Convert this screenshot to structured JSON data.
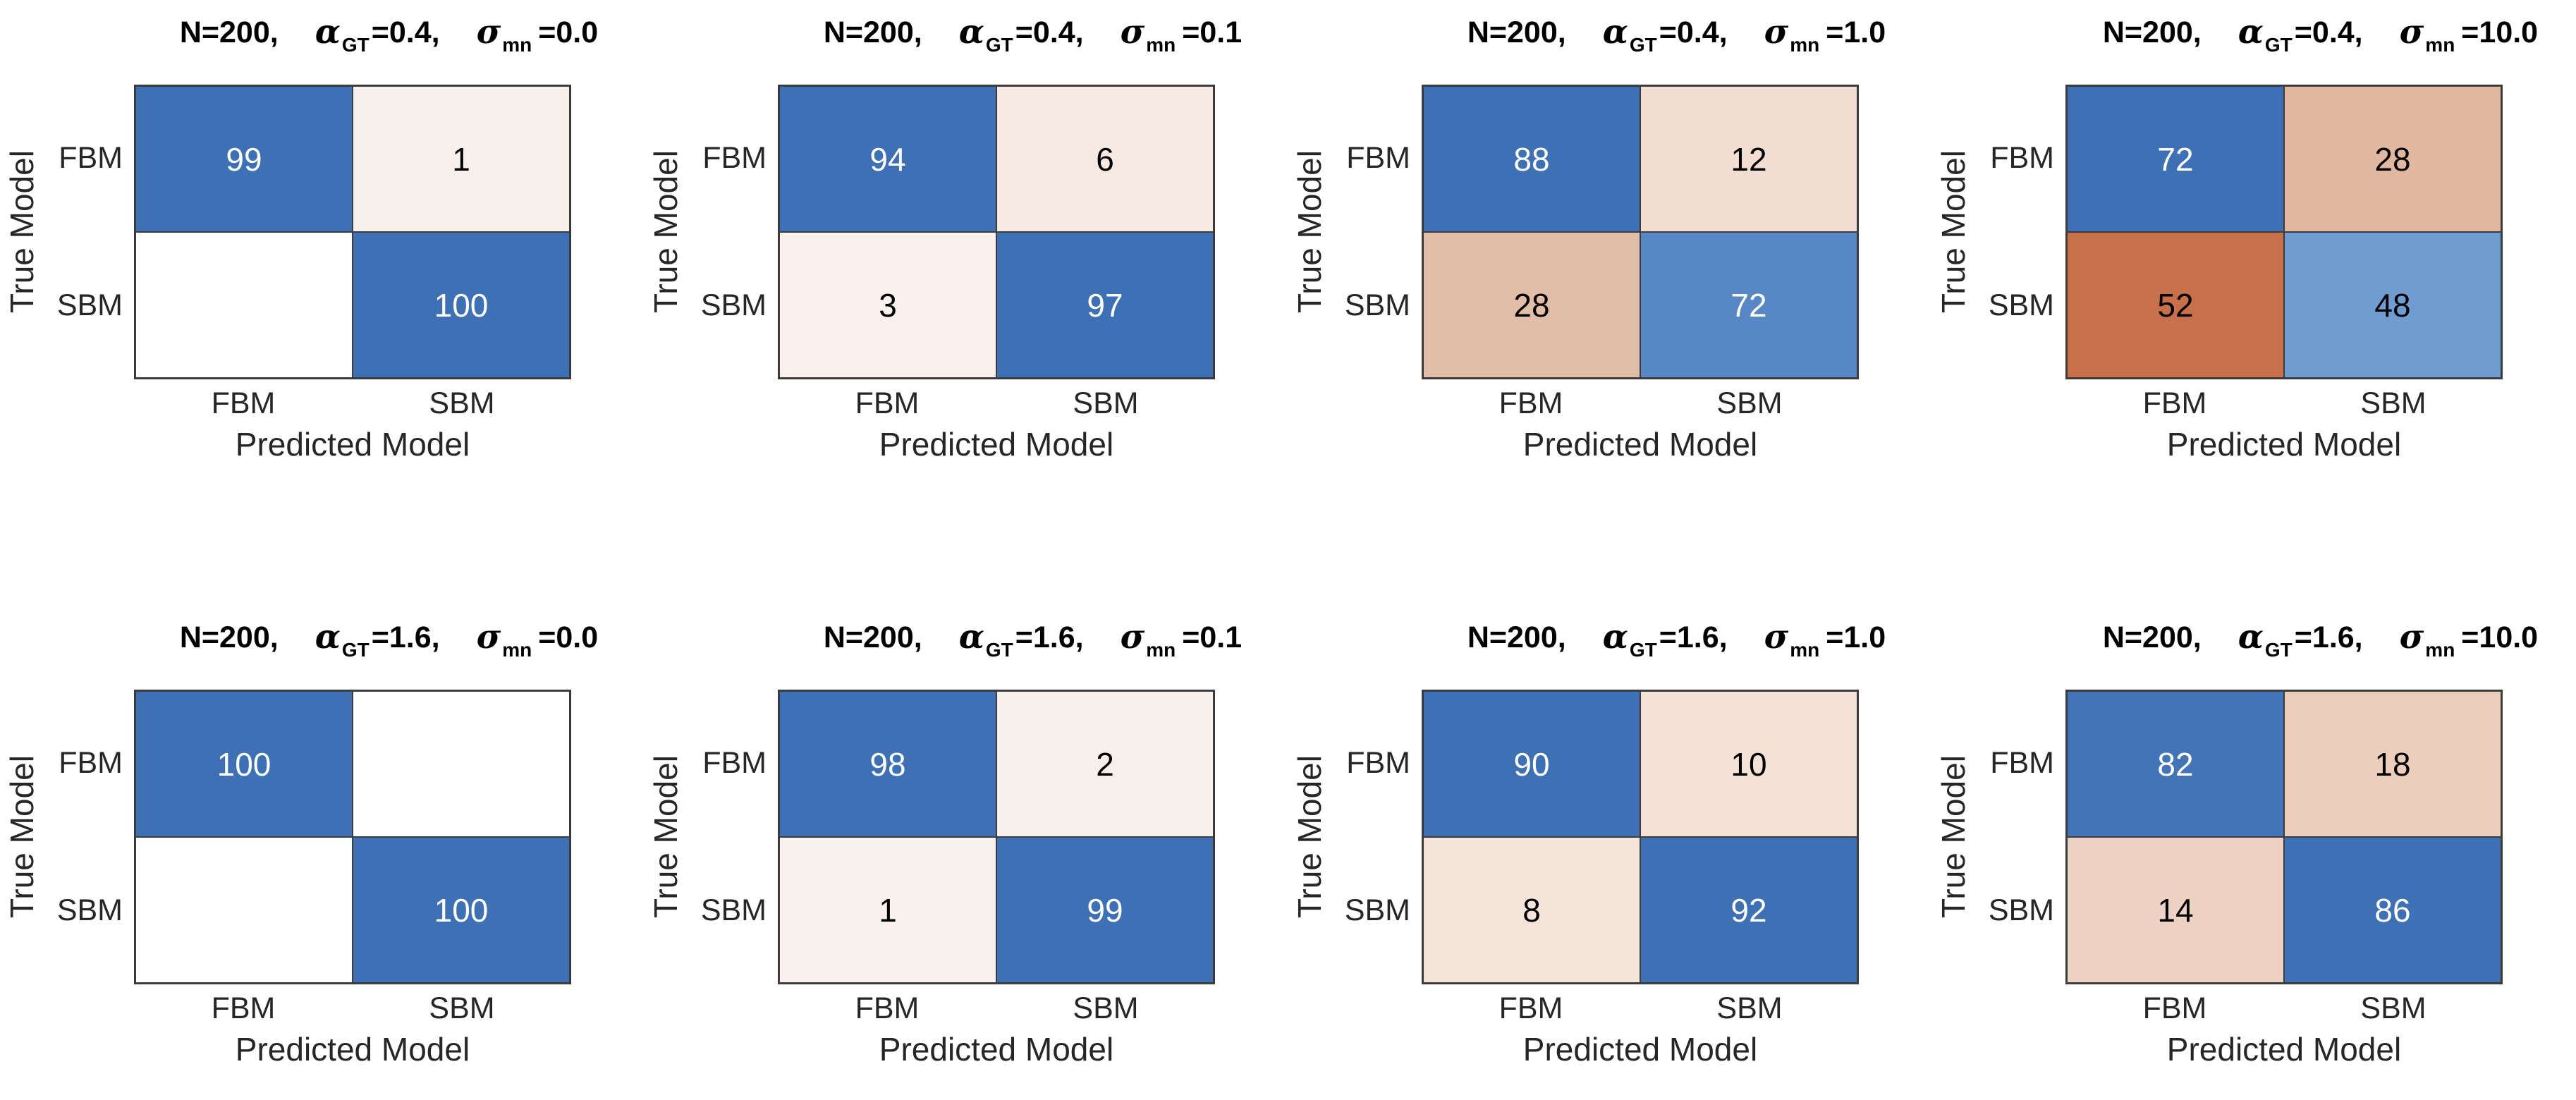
{
  "figure": {
    "description": "2x4 grid of confusion matrices comparing FBM vs SBM model classification",
    "grid_line_color": "#3c3c3c",
    "diagonal_full_blue": "#3E70B5",
    "off_diagonal_full_orange": "#C8704A",
    "background": "#ffffff"
  },
  "charts": [
    {
      "title": {
        "n": "N=200,",
        "alpha": "α",
        "alpha_sub": "GT",
        "alpha_eq": "=0.4,",
        "sigma": "σ",
        "sigma_sub": "mn",
        "sigma_eq": "=0.0"
      },
      "ylabel": "True Model",
      "xlabel": "Predicted Model",
      "yticks": [
        "FBM",
        "SBM"
      ],
      "xticks": [
        "FBM",
        "SBM"
      ],
      "cells": [
        {
          "value": "99",
          "bg": "#3E70B5",
          "fg": "#ffffff"
        },
        {
          "value": "1",
          "bg": "#F8F1EB",
          "fg": "#000000"
        },
        {
          "value": "",
          "bg": "#FFFFFF",
          "fg": "#000000"
        },
        {
          "value": "100",
          "bg": "#3E70B5",
          "fg": "#ffffff"
        }
      ]
    },
    {
      "title": {
        "n": "N=200,",
        "alpha": "α",
        "alpha_sub": "GT",
        "alpha_eq": "=0.4,",
        "sigma": "σ",
        "sigma_sub": "mn",
        "sigma_eq": "=0.1"
      },
      "ylabel": "True Model",
      "xlabel": "Predicted Model",
      "yticks": [
        "FBM",
        "SBM"
      ],
      "xticks": [
        "FBM",
        "SBM"
      ],
      "cells": [
        {
          "value": "94",
          "bg": "#3E70B5",
          "fg": "#ffffff"
        },
        {
          "value": "6",
          "bg": "#F6EAE2",
          "fg": "#000000"
        },
        {
          "value": "3",
          "bg": "#FAF1EC",
          "fg": "#000000"
        },
        {
          "value": "97",
          "bg": "#3E70B5",
          "fg": "#ffffff"
        }
      ]
    },
    {
      "title": {
        "n": "N=200,",
        "alpha": "α",
        "alpha_sub": "GT",
        "alpha_eq": "=0.4,",
        "sigma": "σ",
        "sigma_sub": "mn",
        "sigma_eq": "=1.0"
      },
      "ylabel": "True Model",
      "xlabel": "Predicted Model",
      "yticks": [
        "FBM",
        "SBM"
      ],
      "xticks": [
        "FBM",
        "SBM"
      ],
      "cells": [
        {
          "value": "88",
          "bg": "#3E70B5",
          "fg": "#ffffff"
        },
        {
          "value": "12",
          "bg": "#F2DDD1",
          "fg": "#000000"
        },
        {
          "value": "28",
          "bg": "#E2BDA7",
          "fg": "#000000"
        },
        {
          "value": "72",
          "bg": "#5887C5",
          "fg": "#ffffff"
        }
      ]
    },
    {
      "title": {
        "n": "N=200,",
        "alpha": "α",
        "alpha_sub": "GT",
        "alpha_eq": "=0.4,",
        "sigma": "σ",
        "sigma_sub": "mn",
        "sigma_eq": "=10.0"
      },
      "ylabel": "True Model",
      "xlabel": "Predicted Model",
      "yticks": [
        "FBM",
        "SBM"
      ],
      "xticks": [
        "FBM",
        "SBM"
      ],
      "cells": [
        {
          "value": "72",
          "bg": "#3E70B5",
          "fg": "#ffffff"
        },
        {
          "value": "28",
          "bg": "#E0B79F",
          "fg": "#000000"
        },
        {
          "value": "52",
          "bg": "#C8704A",
          "fg": "#000000"
        },
        {
          "value": "48",
          "bg": "#6F9DD2",
          "fg": "#000000"
        }
      ]
    },
    {
      "title": {
        "n": "N=200,",
        "alpha": "α",
        "alpha_sub": "GT",
        "alpha_eq": "=1.6,",
        "sigma": "σ",
        "sigma_sub": "mn",
        "sigma_eq": "=0.0"
      },
      "ylabel": "True Model",
      "xlabel": "Predicted Model",
      "yticks": [
        "FBM",
        "SBM"
      ],
      "xticks": [
        "FBM",
        "SBM"
      ],
      "cells": [
        {
          "value": "100",
          "bg": "#3E70B5",
          "fg": "#ffffff"
        },
        {
          "value": "",
          "bg": "#FFFFFF",
          "fg": "#000000"
        },
        {
          "value": "",
          "bg": "#FFFFFF",
          "fg": "#000000"
        },
        {
          "value": "100",
          "bg": "#3E70B5",
          "fg": "#ffffff"
        }
      ]
    },
    {
      "title": {
        "n": "N=200,",
        "alpha": "α",
        "alpha_sub": "GT",
        "alpha_eq": "=1.6,",
        "sigma": "σ",
        "sigma_sub": "mn",
        "sigma_eq": "=0.1"
      },
      "ylabel": "True Model",
      "xlabel": "Predicted Model",
      "yticks": [
        "FBM",
        "SBM"
      ],
      "xticks": [
        "FBM",
        "SBM"
      ],
      "cells": [
        {
          "value": "98",
          "bg": "#3E70B5",
          "fg": "#ffffff"
        },
        {
          "value": "2",
          "bg": "#F7EFE9",
          "fg": "#000000"
        },
        {
          "value": "1",
          "bg": "#F8F1EC",
          "fg": "#000000"
        },
        {
          "value": "99",
          "bg": "#3E70B5",
          "fg": "#ffffff"
        }
      ]
    },
    {
      "title": {
        "n": "N=200,",
        "alpha": "α",
        "alpha_sub": "GT",
        "alpha_eq": "=1.6,",
        "sigma": "σ",
        "sigma_sub": "mn",
        "sigma_eq": "=1.0"
      },
      "ylabel": "True Model",
      "xlabel": "Predicted Model",
      "yticks": [
        "FBM",
        "SBM"
      ],
      "xticks": [
        "FBM",
        "SBM"
      ],
      "cells": [
        {
          "value": "90",
          "bg": "#3E70B5",
          "fg": "#ffffff"
        },
        {
          "value": "10",
          "bg": "#F4E2D7",
          "fg": "#000000"
        },
        {
          "value": "8",
          "bg": "#F5E4DA",
          "fg": "#000000"
        },
        {
          "value": "92",
          "bg": "#3E70B5",
          "fg": "#ffffff"
        }
      ]
    },
    {
      "title": {
        "n": "N=200,",
        "alpha": "α",
        "alpha_sub": "GT",
        "alpha_eq": "=1.6,",
        "sigma": "σ",
        "sigma_sub": "mn",
        "sigma_eq": "=10.0"
      },
      "ylabel": "True Model",
      "xlabel": "Predicted Model",
      "yticks": [
        "FBM",
        "SBM"
      ],
      "xticks": [
        "FBM",
        "SBM"
      ],
      "cells": [
        {
          "value": "82",
          "bg": "#4274B7",
          "fg": "#ffffff"
        },
        {
          "value": "18",
          "bg": "#EBCFBC",
          "fg": "#000000"
        },
        {
          "value": "14",
          "bg": "#EDD1C3",
          "fg": "#000000"
        },
        {
          "value": "86",
          "bg": "#3E70B5",
          "fg": "#ffffff"
        }
      ]
    }
  ],
  "chart_data": [
    {
      "type": "heatmap",
      "title": "N=200, α_GT=0.4, σ_mn=0.0",
      "xlabel": "Predicted Model",
      "ylabel": "True Model",
      "x": [
        "FBM",
        "SBM"
      ],
      "y": [
        "FBM",
        "SBM"
      ],
      "values": [
        [
          99,
          1
        ],
        [
          null,
          100
        ]
      ],
      "note": "confusion matrix; blank cell = 0"
    },
    {
      "type": "heatmap",
      "title": "N=200, α_GT=0.4, σ_mn=0.1",
      "xlabel": "Predicted Model",
      "ylabel": "True Model",
      "x": [
        "FBM",
        "SBM"
      ],
      "y": [
        "FBM",
        "SBM"
      ],
      "values": [
        [
          94,
          6
        ],
        [
          3,
          97
        ]
      ]
    },
    {
      "type": "heatmap",
      "title": "N=200, α_GT=0.4, σ_mn=1.0",
      "xlabel": "Predicted Model",
      "ylabel": "True Model",
      "x": [
        "FBM",
        "SBM"
      ],
      "y": [
        "FBM",
        "SBM"
      ],
      "values": [
        [
          88,
          12
        ],
        [
          28,
          72
        ]
      ]
    },
    {
      "type": "heatmap",
      "title": "N=200, α_GT=0.4, σ_mn=10.0",
      "xlabel": "Predicted Model",
      "ylabel": "True Model",
      "x": [
        "FBM",
        "SBM"
      ],
      "y": [
        "FBM",
        "SBM"
      ],
      "values": [
        [
          72,
          28
        ],
        [
          52,
          48
        ]
      ]
    },
    {
      "type": "heatmap",
      "title": "N=200, α_GT=1.6, σ_mn=0.0",
      "xlabel": "Predicted Model",
      "ylabel": "True Model",
      "x": [
        "FBM",
        "SBM"
      ],
      "y": [
        "FBM",
        "SBM"
      ],
      "values": [
        [
          100,
          null
        ],
        [
          null,
          100
        ]
      ],
      "note": "confusion matrix; blank cells = 0"
    },
    {
      "type": "heatmap",
      "title": "N=200, α_GT=1.6, σ_mn=0.1",
      "xlabel": "Predicted Model",
      "ylabel": "True Model",
      "x": [
        "FBM",
        "SBM"
      ],
      "y": [
        "FBM",
        "SBM"
      ],
      "values": [
        [
          98,
          2
        ],
        [
          1,
          99
        ]
      ]
    },
    {
      "type": "heatmap",
      "title": "N=200, α_GT=1.6, σ_mn=1.0",
      "xlabel": "Predicted Model",
      "ylabel": "True Model",
      "x": [
        "FBM",
        "SBM"
      ],
      "y": [
        "FBM",
        "SBM"
      ],
      "values": [
        [
          90,
          10
        ],
        [
          8,
          92
        ]
      ]
    },
    {
      "type": "heatmap",
      "title": "N=200, α_GT=1.6, σ_mn=10.0",
      "xlabel": "Predicted Model",
      "ylabel": "True Model",
      "x": [
        "FBM",
        "SBM"
      ],
      "y": [
        "FBM",
        "SBM"
      ],
      "values": [
        [
          82,
          18
        ],
        [
          14,
          86
        ]
      ]
    }
  ]
}
